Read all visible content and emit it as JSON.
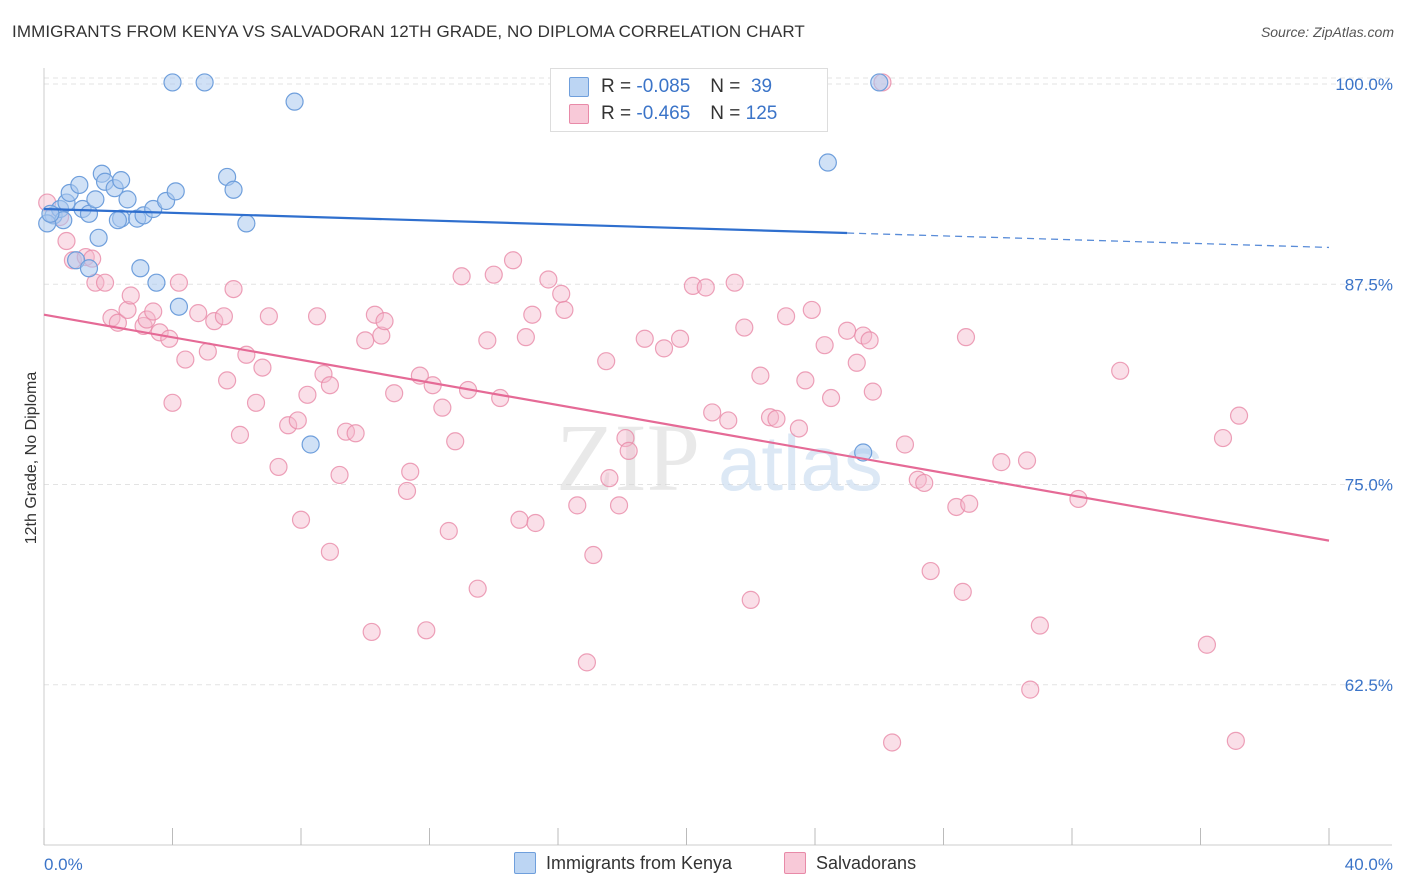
{
  "title": "IMMIGRANTS FROM KENYA VS SALVADORAN 12TH GRADE, NO DIPLOMA CORRELATION CHART",
  "source": "Source: ZipAtlas.com",
  "watermark": {
    "zip": "ZIP",
    "atlas": "atlas"
  },
  "legend": {
    "r_label": "R =",
    "n_label": "N =",
    "kenya": {
      "r": "-0.085",
      "n": "39"
    },
    "salvadorans": {
      "r": "-0.465",
      "n": "125"
    }
  },
  "colors": {
    "kenya_fill": "#a9c8ef",
    "kenya_stroke": "#6f9fdc",
    "kenya_line": "#2f6fce",
    "salv_fill": "#f5b8cb",
    "salv_stroke": "#e88aa8",
    "salv_line": "#e56a96",
    "tick_label": "#3b74c8"
  },
  "chart_data": {
    "type": "scatter",
    "title": "IMMIGRANTS FROM KENYA VS SALVADORAN 12TH GRADE, NO DIPLOMA CORRELATION CHART",
    "xlabel": "",
    "ylabel": "12th Grade, No Diploma",
    "xlim": [
      0,
      40
    ],
    "ylim": [
      52.5,
      101.5
    ],
    "x_tick_labels": [
      "0.0%",
      "40.0%"
    ],
    "y_ticks": [
      62.5,
      75.0,
      87.5,
      100.0
    ],
    "y_tick_labels": [
      "62.5%",
      "75.0%",
      "87.5%",
      "100.0%"
    ],
    "grid": true,
    "legend_position": "top-center",
    "series": [
      {
        "name": "Immigrants from Kenya",
        "r": -0.085,
        "n": 39,
        "trend": {
          "x": [
            0,
            25,
            40
          ],
          "y": [
            92.2,
            90.7,
            89.8
          ],
          "dashed_after_x": 25
        },
        "points": [
          [
            0.3,
            91.8
          ],
          [
            0.5,
            92.2
          ],
          [
            0.6,
            91.5
          ],
          [
            0.7,
            92.6
          ],
          [
            0.8,
            93.2
          ],
          [
            1.1,
            93.7
          ],
          [
            1.2,
            92.2
          ],
          [
            1.4,
            91.9
          ],
          [
            1.6,
            92.8
          ],
          [
            1.8,
            94.4
          ],
          [
            1.9,
            93.9
          ],
          [
            2.2,
            93.5
          ],
          [
            2.4,
            94.0
          ],
          [
            2.6,
            92.8
          ],
          [
            2.4,
            91.6
          ],
          [
            2.3,
            91.5
          ],
          [
            2.9,
            91.6
          ],
          [
            3.1,
            91.8
          ],
          [
            3.4,
            92.2
          ],
          [
            3.8,
            92.7
          ],
          [
            4.1,
            93.3
          ],
          [
            5.7,
            94.2
          ],
          [
            5.9,
            93.4
          ],
          [
            6.3,
            91.3
          ],
          [
            4.0,
            100.1
          ],
          [
            5.0,
            100.1
          ],
          [
            7.8,
            98.9
          ],
          [
            1.7,
            90.4
          ],
          [
            1.0,
            89.0
          ],
          [
            1.4,
            88.5
          ],
          [
            3.0,
            88.5
          ],
          [
            3.5,
            87.6
          ],
          [
            4.2,
            86.1
          ],
          [
            8.3,
            77.5
          ],
          [
            24.4,
            95.1
          ],
          [
            26.0,
            100.1
          ],
          [
            25.5,
            77.0
          ],
          [
            0.1,
            91.3
          ],
          [
            0.2,
            91.9
          ]
        ]
      },
      {
        "name": "Salvadorans",
        "r": -0.465,
        "n": 125,
        "trend": {
          "x": [
            0,
            40
          ],
          "y": [
            85.6,
            71.5
          ]
        },
        "points": [
          [
            0.1,
            92.6
          ],
          [
            0.5,
            91.7
          ],
          [
            0.7,
            90.2
          ],
          [
            0.9,
            89.0
          ],
          [
            1.3,
            89.2
          ],
          [
            1.5,
            89.1
          ],
          [
            1.6,
            87.6
          ],
          [
            1.9,
            87.6
          ],
          [
            2.1,
            85.4
          ],
          [
            2.3,
            85.1
          ],
          [
            2.6,
            85.9
          ],
          [
            2.7,
            86.8
          ],
          [
            3.1,
            84.9
          ],
          [
            3.2,
            85.3
          ],
          [
            3.4,
            85.8
          ],
          [
            3.6,
            84.5
          ],
          [
            3.9,
            84.1
          ],
          [
            4.0,
            80.1
          ],
          [
            4.2,
            87.6
          ],
          [
            4.4,
            82.8
          ],
          [
            4.8,
            85.7
          ],
          [
            5.1,
            83.3
          ],
          [
            5.3,
            85.2
          ],
          [
            5.6,
            85.5
          ],
          [
            5.7,
            81.5
          ],
          [
            5.9,
            87.2
          ],
          [
            6.1,
            78.1
          ],
          [
            6.3,
            83.1
          ],
          [
            6.6,
            80.1
          ],
          [
            6.8,
            82.3
          ],
          [
            7.0,
            85.5
          ],
          [
            7.3,
            76.1
          ],
          [
            7.6,
            78.7
          ],
          [
            7.9,
            79.0
          ],
          [
            8.0,
            72.8
          ],
          [
            8.2,
            80.6
          ],
          [
            8.5,
            85.5
          ],
          [
            8.7,
            81.9
          ],
          [
            8.9,
            81.2
          ],
          [
            8.9,
            70.8
          ],
          [
            9.2,
            75.6
          ],
          [
            9.4,
            78.3
          ],
          [
            9.7,
            78.2
          ],
          [
            10.0,
            84.0
          ],
          [
            10.2,
            65.8
          ],
          [
            10.3,
            85.6
          ],
          [
            10.5,
            84.3
          ],
          [
            10.6,
            85.2
          ],
          [
            10.9,
            80.7
          ],
          [
            11.3,
            74.6
          ],
          [
            11.4,
            75.8
          ],
          [
            11.7,
            81.8
          ],
          [
            11.9,
            65.9
          ],
          [
            12.1,
            81.2
          ],
          [
            12.4,
            79.8
          ],
          [
            12.6,
            72.1
          ],
          [
            12.8,
            77.7
          ],
          [
            13.0,
            88.0
          ],
          [
            13.2,
            80.9
          ],
          [
            13.5,
            68.5
          ],
          [
            13.8,
            84.0
          ],
          [
            14.0,
            88.1
          ],
          [
            14.2,
            80.4
          ],
          [
            14.6,
            89.0
          ],
          [
            14.8,
            72.8
          ],
          [
            15.0,
            84.2
          ],
          [
            15.2,
            85.6
          ],
          [
            15.3,
            72.6
          ],
          [
            15.7,
            87.8
          ],
          [
            16.1,
            86.9
          ],
          [
            16.2,
            85.9
          ],
          [
            16.6,
            73.7
          ],
          [
            16.9,
            63.9
          ],
          [
            17.1,
            70.6
          ],
          [
            17.5,
            82.7
          ],
          [
            17.6,
            75.4
          ],
          [
            17.9,
            73.7
          ],
          [
            18.1,
            77.9
          ],
          [
            18.2,
            77.1
          ],
          [
            18.7,
            84.1
          ],
          [
            19.3,
            83.5
          ],
          [
            19.8,
            84.1
          ],
          [
            20.2,
            87.4
          ],
          [
            20.6,
            87.3
          ],
          [
            20.8,
            79.5
          ],
          [
            21.3,
            79.0
          ],
          [
            21.5,
            87.6
          ],
          [
            21.8,
            84.8
          ],
          [
            22.0,
            67.8
          ],
          [
            22.3,
            81.8
          ],
          [
            22.6,
            79.2
          ],
          [
            22.8,
            79.1
          ],
          [
            23.1,
            85.5
          ],
          [
            23.5,
            78.5
          ],
          [
            23.7,
            81.5
          ],
          [
            23.9,
            85.9
          ],
          [
            24.3,
            83.7
          ],
          [
            24.5,
            80.4
          ],
          [
            25.0,
            84.6
          ],
          [
            25.3,
            82.6
          ],
          [
            25.5,
            84.3
          ],
          [
            25.7,
            84.0
          ],
          [
            25.8,
            80.8
          ],
          [
            26.4,
            58.9
          ],
          [
            26.8,
            77.5
          ],
          [
            27.2,
            75.3
          ],
          [
            27.4,
            75.1
          ],
          [
            27.6,
            69.6
          ],
          [
            28.4,
            73.6
          ],
          [
            28.6,
            68.3
          ],
          [
            28.7,
            84.2
          ],
          [
            28.8,
            73.8
          ],
          [
            29.8,
            76.4
          ],
          [
            30.6,
            76.5
          ],
          [
            30.7,
            62.2
          ],
          [
            31.0,
            66.2
          ],
          [
            32.2,
            74.1
          ],
          [
            33.5,
            82.1
          ],
          [
            36.2,
            65.0
          ],
          [
            36.7,
            77.9
          ],
          [
            37.2,
            79.3
          ],
          [
            37.1,
            59.0
          ],
          [
            26.1,
            100.1
          ]
        ]
      }
    ]
  },
  "bottom_legend": {
    "kenya": "Immigrants from Kenya",
    "salvadorans": "Salvadorans"
  }
}
